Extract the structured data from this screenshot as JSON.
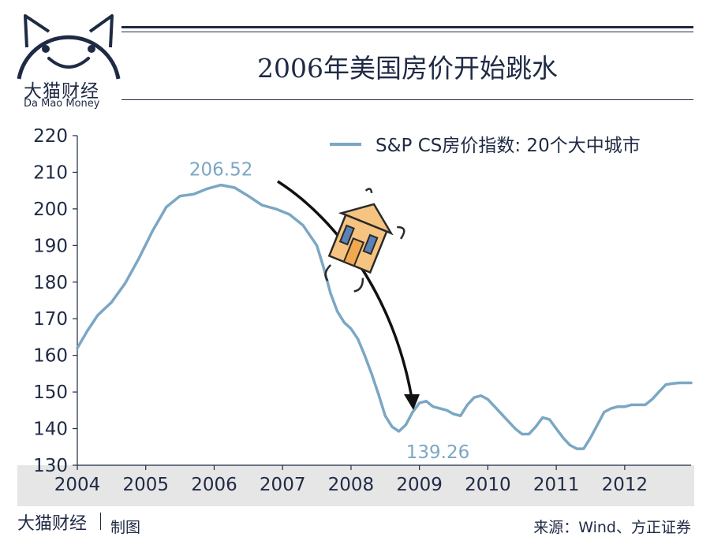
{
  "brand": {
    "name_cn": "大猫财经",
    "name_en": "Da Mao Money"
  },
  "title": "2006年美国房价开始跳水",
  "footer": {
    "brand": "大猫财经",
    "made_by": "制图",
    "source": "来源：Wind、方正证券"
  },
  "colors": {
    "line": "#7ba7c4",
    "axis": "#1f2a44",
    "band": "#e6e6e6",
    "arrow": "#111111",
    "house_body": "#f6c480",
    "house_window": "#5b82b8"
  },
  "icons": [
    "cat-logo-icon",
    "falling-house-icon",
    "down-arrow-icon"
  ],
  "chart_data": {
    "type": "line",
    "title": "2006年美国房价开始跳水",
    "xlabel": "",
    "ylabel": "",
    "xlim": [
      2004.0,
      2012.97
    ],
    "ylim": [
      130,
      220
    ],
    "x_ticks": [
      2004,
      2005,
      2006,
      2007,
      2008,
      2009,
      2010,
      2011,
      2012
    ],
    "x_tick_labels": [
      "2004",
      "2005",
      "2006",
      "2007",
      "2008",
      "2009",
      "2010",
      "2011",
      "2012"
    ],
    "y_ticks": [
      130,
      140,
      150,
      160,
      170,
      180,
      190,
      200,
      210,
      220
    ],
    "y_tick_labels": [
      "130",
      "140",
      "150",
      "160",
      "170",
      "180",
      "190",
      "200",
      "210",
      "220"
    ],
    "grid": false,
    "legend": {
      "position": "top-right",
      "entries": [
        "S&P CS房价指数: 20个大中城市"
      ]
    },
    "series": [
      {
        "name": "S&P CS房价指数: 20个大中城市",
        "x": [
          2004.0,
          2004.15,
          2004.3,
          2004.5,
          2004.7,
          2004.9,
          2005.1,
          2005.3,
          2005.5,
          2005.7,
          2005.9,
          2006.1,
          2006.3,
          2006.5,
          2006.7,
          2006.9,
          2007.1,
          2007.3,
          2007.5,
          2007.6,
          2007.7,
          2007.8,
          2007.9,
          2008.0,
          2008.1,
          2008.2,
          2008.3,
          2008.4,
          2008.5,
          2008.6,
          2008.7,
          2008.8,
          2008.9,
          2009.0,
          2009.1,
          2009.2,
          2009.3,
          2009.4,
          2009.5,
          2009.6,
          2009.7,
          2009.8,
          2009.9,
          2010.0,
          2010.1,
          2010.2,
          2010.3,
          2010.4,
          2010.5,
          2010.6,
          2010.7,
          2010.8,
          2010.9,
          2011.0,
          2011.1,
          2011.2,
          2011.3,
          2011.4,
          2011.5,
          2011.6,
          2011.7,
          2011.8,
          2011.9,
          2012.0,
          2012.1,
          2012.2,
          2012.3,
          2012.4,
          2012.5,
          2012.6,
          2012.7,
          2012.8,
          2012.9,
          2012.97
        ],
        "values": [
          162.0,
          166.8,
          171.0,
          174.5,
          179.7,
          186.5,
          194.0,
          200.5,
          203.5,
          204.0,
          205.5,
          206.52,
          205.8,
          203.5,
          201.0,
          200.0,
          198.5,
          195.5,
          190.0,
          184.0,
          177.0,
          172.0,
          169.0,
          167.3,
          164.5,
          160.0,
          155.0,
          149.5,
          143.5,
          140.5,
          139.26,
          141.0,
          144.5,
          147.0,
          147.5,
          146.0,
          145.5,
          145.0,
          144.0,
          143.5,
          146.5,
          148.5,
          149.0,
          148.0,
          146.0,
          144.0,
          142.0,
          140.0,
          138.5,
          138.5,
          140.5,
          143.0,
          142.5,
          140.0,
          137.5,
          135.5,
          134.5,
          134.5,
          137.5,
          141.0,
          144.5,
          145.5,
          146.0,
          146.0,
          146.5,
          146.5,
          146.5,
          148.0,
          150.0,
          152.0,
          152.3,
          152.5,
          152.5,
          152.5
        ]
      }
    ],
    "annotations": [
      {
        "text": "206.52",
        "x": 2006.1,
        "y": 206.52
      },
      {
        "text": "139.26",
        "x": 2008.9,
        "y": 139.26
      }
    ]
  }
}
